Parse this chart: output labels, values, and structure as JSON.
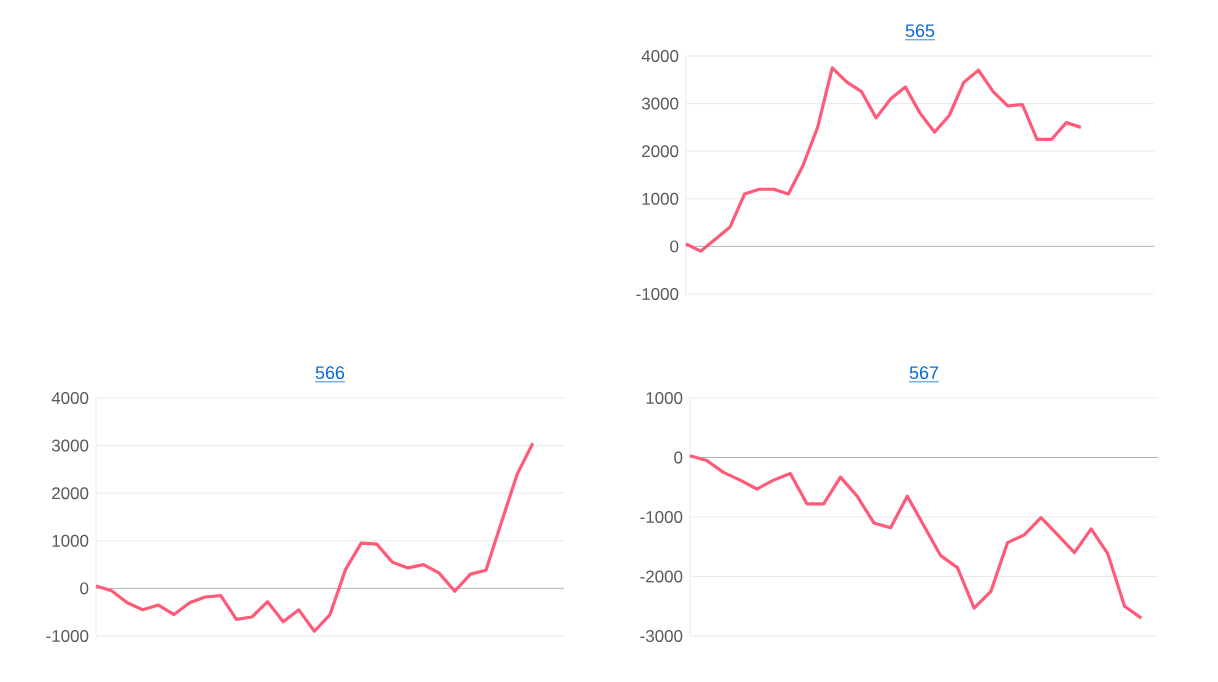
{
  "chart_data": [
    {
      "type": "line",
      "title": "565",
      "categories": [
        null,
        null,
        null,
        null,
        null,
        null,
        null,
        null,
        null,
        null,
        null,
        null,
        null,
        null,
        null,
        null,
        null,
        null,
        null,
        null,
        null,
        null,
        null,
        null,
        null,
        null,
        null,
        null,
        null,
        null,
        null,
        null,
        null
      ],
      "series": [
        {
          "color": "#ff5a78",
          "values": [
            50,
            -100,
            150,
            400,
            1100,
            1200,
            1200,
            1100,
            1700,
            2500,
            3750,
            3450,
            3250,
            2700,
            3100,
            3350,
            2800,
            2400,
            2750,
            3450,
            3700,
            3250,
            2950,
            2980,
            2250,
            2250,
            2600,
            2500,
            null,
            null,
            null,
            null,
            null
          ]
        }
      ],
      "ylim": [
        -1000,
        4000
      ],
      "yticks": [
        -1000,
        0,
        1000,
        2000,
        3000,
        4000
      ],
      "grid": "y",
      "tick_labels": "y"
    },
    {
      "type": "line",
      "title": "566",
      "categories": [
        null,
        null,
        null,
        null,
        null,
        null,
        null,
        null,
        null,
        null,
        null,
        null,
        null,
        null,
        null,
        null,
        null,
        null,
        null,
        null,
        null,
        null,
        null,
        null,
        null,
        null,
        null,
        null,
        null,
        null,
        null
      ],
      "series": [
        {
          "color": "#ff5a78",
          "values": [
            50,
            -50,
            -300,
            -450,
            -350,
            -550,
            -300,
            -180,
            -150,
            -650,
            -600,
            -280,
            -700,
            -450,
            -900,
            -550,
            400,
            950,
            930,
            550,
            430,
            500,
            320,
            -60,
            300,
            380,
            1400,
            2400,
            3050,
            null,
            null
          ]
        }
      ],
      "ylim": [
        -1000,
        4000
      ],
      "yticks": [
        -1000,
        0,
        1000,
        2000,
        3000,
        4000
      ],
      "grid": "y",
      "tick_labels": "y"
    },
    {
      "type": "line",
      "title": "567",
      "categories": [
        null,
        null,
        null,
        null,
        null,
        null,
        null,
        null,
        null,
        null,
        null,
        null,
        null,
        null,
        null,
        null,
        null,
        null,
        null,
        null,
        null,
        null,
        null,
        null,
        null,
        null,
        null,
        null,
        null
      ],
      "series": [
        {
          "color": "#ff5a78",
          "values": [
            30,
            -50,
            -250,
            -380,
            -530,
            -380,
            -270,
            -780,
            -780,
            -330,
            -650,
            -1100,
            -1180,
            -650,
            -1150,
            -1650,
            -1850,
            -2530,
            -2250,
            -1430,
            -1300,
            -1010,
            -1300,
            -1600,
            -1200,
            -1620,
            -2500,
            -2700,
            null
          ]
        }
      ],
      "ylim": [
        -3000,
        1000
      ],
      "yticks": [
        -3000,
        -2000,
        -1000,
        0,
        1000
      ],
      "grid": "y",
      "tick_labels": "y"
    }
  ]
}
